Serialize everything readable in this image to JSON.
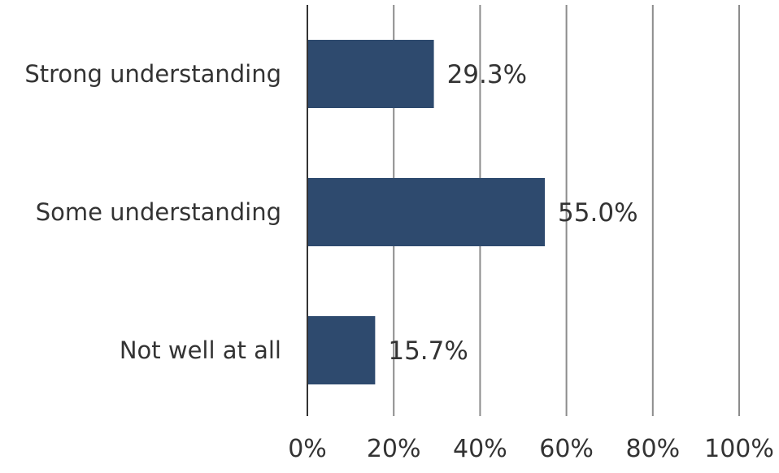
{
  "chart_data": {
    "type": "bar",
    "orientation": "horizontal",
    "title": "",
    "xlabel": "",
    "ylabel": "",
    "categories": [
      "Strong understanding",
      "Some understanding",
      "Not well at all"
    ],
    "values": [
      29.3,
      55.0,
      15.7
    ],
    "data_labels": [
      "29.3%",
      "55.0%",
      "15.7%"
    ],
    "xlim": [
      0,
      100
    ],
    "x_ticks": [
      0,
      20,
      40,
      60,
      80,
      100
    ],
    "x_tick_labels": [
      "0%",
      "20%",
      "40%",
      "60%",
      "80%",
      "100%"
    ],
    "grid": "vertical",
    "legend": "none",
    "colors": {
      "bar": "#2E4A6E",
      "grid": "#8C8C8C",
      "axis": "#333333",
      "text": "#333333"
    }
  }
}
